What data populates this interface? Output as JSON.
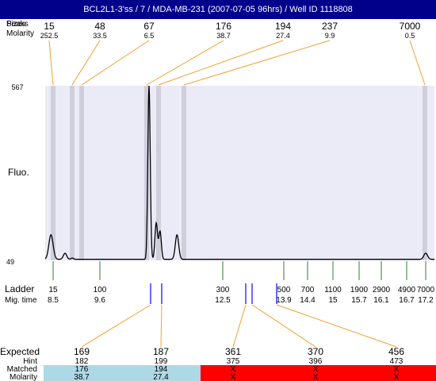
{
  "header": {
    "title": "BCL2L1-3'ss / 7 / MDA-MB-231 (2007-07-05 96hrs) / Well ID 1118808"
  },
  "labels": {
    "peaks_label": "Peaks",
    "sizes_label": "Sizes",
    "molarity_label": "Molarity",
    "fluo_label": "Fluo.",
    "ladder_label": "Ladder",
    "migtime_label": "Mig. time",
    "expected_label": "Expected",
    "hint_label": "Hint",
    "matched_label": "Matched",
    "molarity_bottom_label": "Molarity"
  },
  "colors": {
    "header_bg": "#00008b",
    "plot_bg": "#ebebf8",
    "peak_band": "#cfcfdc",
    "leader": "#f0a030",
    "ladder_tick": "#2e7d32",
    "marker_tick": "#1a1aff",
    "expected_highlight": "#e82020",
    "matched_ok": "#add8e6",
    "matched_fail": "#ff0000"
  },
  "chart_data": {
    "type": "line",
    "title": "BCL2L1-3'ss / 7 / MDA-MB-231 (2007-07-05 96hrs) / Well ID 1118808",
    "ylabel": "Fluo.",
    "ylim": [
      49,
      567
    ],
    "y_ticks": [
      "567",
      "49"
    ],
    "peaks": [
      {
        "size": "15",
        "molarity": "252.5"
      },
      {
        "size": "48",
        "molarity": "33.5"
      },
      {
        "size": "67",
        "molarity": "6.5"
      },
      {
        "size": "176",
        "molarity": "38.7"
      },
      {
        "size": "194",
        "molarity": "27.4"
      },
      {
        "size": "237",
        "molarity": "9.9"
      },
      {
        "size": "7000",
        "molarity": "0.5"
      }
    ],
    "ladder": [
      {
        "size": "15",
        "mig_time": "8.5"
      },
      {
        "size": "100",
        "mig_time": "9.6"
      },
      {
        "size": "300",
        "mig_time": "12.5"
      },
      {
        "size": "500",
        "mig_time": "13.9"
      },
      {
        "size": "700",
        "mig_time": "14.4"
      },
      {
        "size": "1100",
        "mig_time": "15"
      },
      {
        "size": "1900",
        "mig_time": "15.7"
      },
      {
        "size": "2900",
        "mig_time": "16.1"
      },
      {
        "size": "4900",
        "mig_time": "16.7"
      },
      {
        "size": "7000",
        "mig_time": "17.2"
      }
    ],
    "expected": [
      {
        "value": "169",
        "hint": "182",
        "matched": "176",
        "molarity": "38.7",
        "highlight": true,
        "status": "ok"
      },
      {
        "value": "187",
        "hint": "199",
        "matched": "194",
        "molarity": "27.4",
        "highlight": true,
        "status": "ok"
      },
      {
        "value": "361",
        "hint": "375",
        "matched": "X",
        "molarity": "X",
        "highlight": false,
        "status": "fail"
      },
      {
        "value": "370",
        "hint": "396",
        "matched": "X",
        "molarity": "X",
        "highlight": false,
        "status": "fail"
      },
      {
        "value": "456",
        "hint": "473",
        "matched": "X",
        "molarity": "X",
        "highlight": false,
        "status": "fail"
      }
    ],
    "trace": {
      "x_unit": "mig_time",
      "baseline": 52,
      "peaks": [
        {
          "t": 8.45,
          "height": 125,
          "width": 0.05
        },
        {
          "t": 8.78,
          "height": 70,
          "width": 0.04
        },
        {
          "t": 8.95,
          "height": 56,
          "width": 0.03
        },
        {
          "t": 10.76,
          "height": 567,
          "width": 0.028
        },
        {
          "t": 10.93,
          "height": 160,
          "width": 0.03
        },
        {
          "t": 11.02,
          "height": 135,
          "width": 0.03
        },
        {
          "t": 11.42,
          "height": 125,
          "width": 0.04
        },
        {
          "t": 17.2,
          "height": 70,
          "width": 0.05
        }
      ]
    }
  }
}
